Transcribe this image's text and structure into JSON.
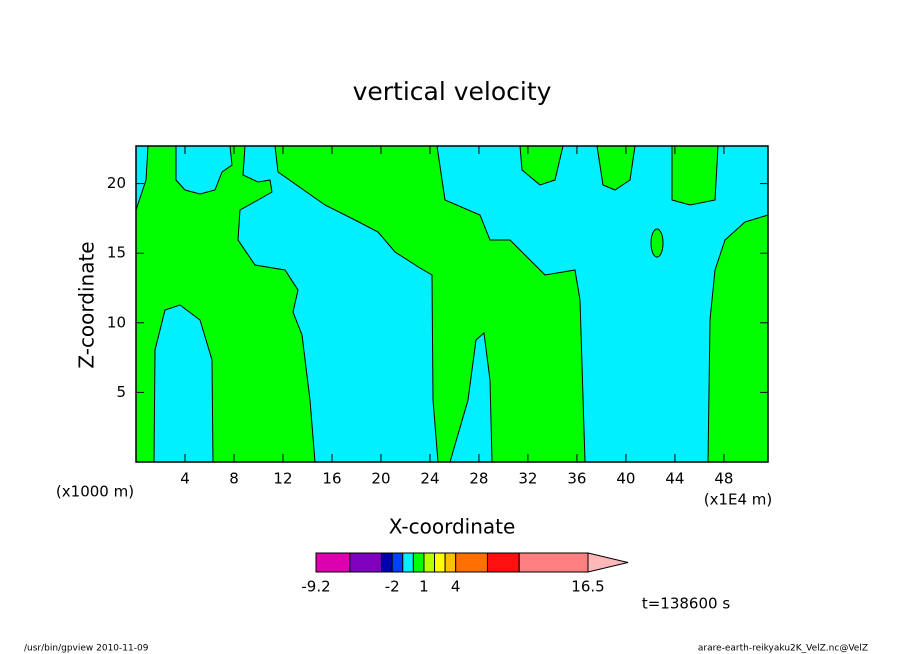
{
  "chart_data": {
    "type": "contour",
    "title": "vertical velocity",
    "xlabel": "X-coordinate",
    "ylabel": "Z-coordinate",
    "x_unit_label": "(x1E4 m)",
    "y_unit_label": "(x1000 m)",
    "xlim": [
      0,
      51.6
    ],
    "ylim": [
      0,
      22.7
    ],
    "xticks": [
      4,
      8,
      12,
      16,
      20,
      24,
      28,
      32,
      36,
      40,
      44,
      48
    ],
    "yticks": [
      5,
      10,
      15,
      20
    ],
    "colorbar": {
      "levels": [
        -9.2,
        -6,
        -3,
        -2,
        -1,
        0,
        1,
        2,
        3,
        4,
        7,
        10,
        16.5
      ],
      "colors": [
        "#dc00b0",
        "#8000c0",
        "#0000b0",
        "#0040ff",
        "#00f0ff",
        "#00ff00",
        "#b8ff00",
        "#ffff00",
        "#ffc000",
        "#ff7000",
        "#ff1010",
        "#ff8080"
      ],
      "extend_color": "#ffb8b8",
      "ticks": [
        -9.2,
        -2,
        1,
        4,
        16.5
      ]
    },
    "time_label": "t=138600 s"
  },
  "footer": {
    "left": "/usr/bin/gpview  2010-11-09",
    "right": "arare-earth-reikyaku2K_VelZ.nc@VelZ"
  }
}
